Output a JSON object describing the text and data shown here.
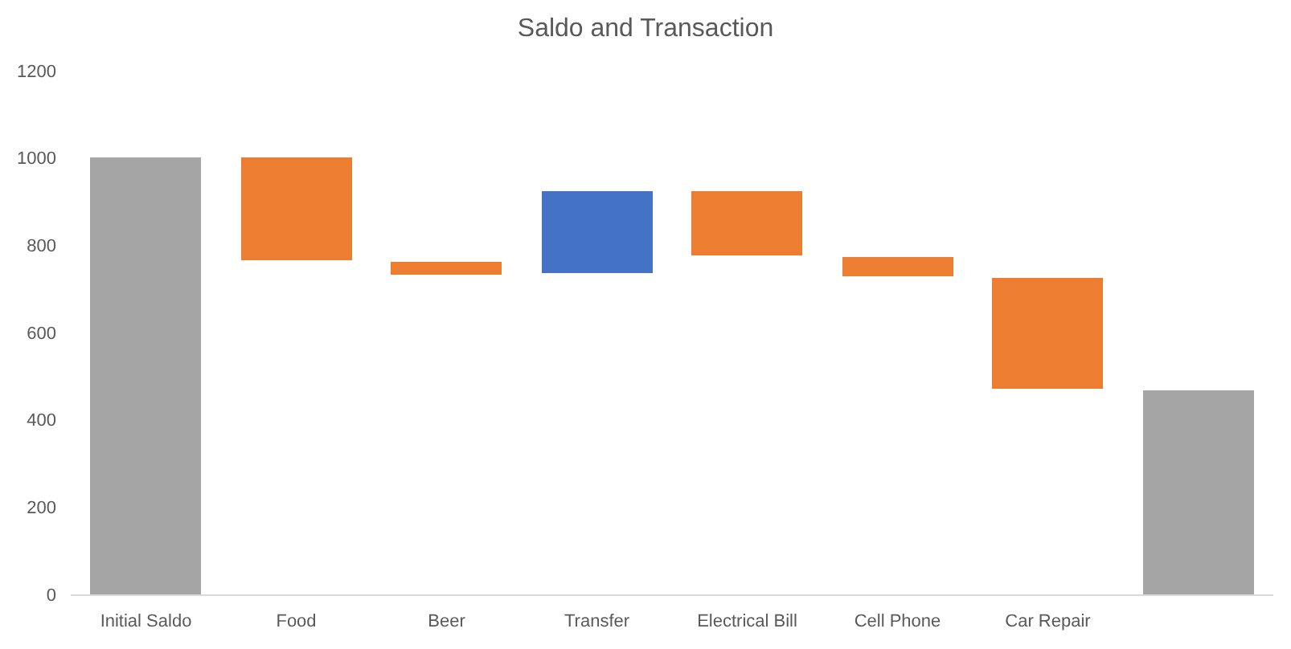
{
  "chart_data": {
    "type": "bar",
    "title": "Saldo and Transaction",
    "categories": [
      "Initial Saldo",
      "Food",
      "Beer",
      "Transfer",
      "Electrical Bill",
      "Cell Phone",
      "Car Repair",
      null
    ],
    "values": [
      1000,
      -235,
      -28,
      190,
      -150,
      -43,
      -253,
      467
    ],
    "base": [
      0,
      1000,
      762,
      735,
      925,
      773,
      725,
      0
    ],
    "colors": [
      "#a5a5a5",
      "#ed7d31",
      "#ed7d31",
      "#4472c4",
      "#ed7d31",
      "#ed7d31",
      "#ed7d31",
      "#a5a5a5"
    ],
    "ylim": [
      0,
      1200
    ],
    "yticks": [
      0,
      200,
      400,
      600,
      800,
      1000,
      1200
    ]
  }
}
